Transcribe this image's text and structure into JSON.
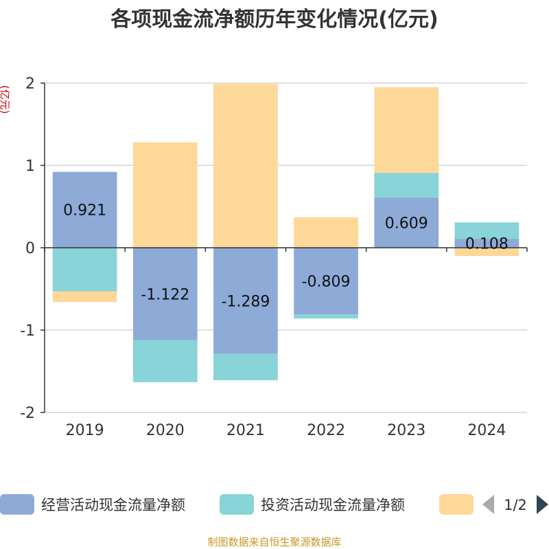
{
  "chart_data": {
    "type": "bar",
    "stacked": true,
    "title": "各项现金流净额历年变化情况(亿元)",
    "ylabel": "(亿元)",
    "categories": [
      "2019",
      "2020",
      "2021",
      "2022",
      "2023",
      "2024"
    ],
    "ylim": [
      -2,
      2
    ],
    "yticks": [
      2,
      1,
      0,
      -1,
      -2
    ],
    "grid": true,
    "series": [
      {
        "name": "经营活动现金流量净额",
        "color": "#8eabd8",
        "values": [
          0.921,
          -1.122,
          -1.289,
          -0.809,
          0.609,
          0.108
        ],
        "labels": [
          "0.921",
          "-1.122",
          "-1.289",
          "-0.809",
          "0.609",
          "0.108"
        ]
      },
      {
        "name": "投资活动现金流量净额",
        "color": "#88d4d8",
        "values": [
          -0.53,
          -0.51,
          -0.32,
          -0.05,
          0.3,
          0.2
        ]
      },
      {
        "name": "",
        "color": "#fed898",
        "values": [
          -0.13,
          1.28,
          1.99,
          0.37,
          1.04,
          -0.1
        ]
      }
    ],
    "legend": {
      "position": "bottom",
      "page": "1/2"
    }
  },
  "source_text": "制图数据来自恒生聚源数据库"
}
